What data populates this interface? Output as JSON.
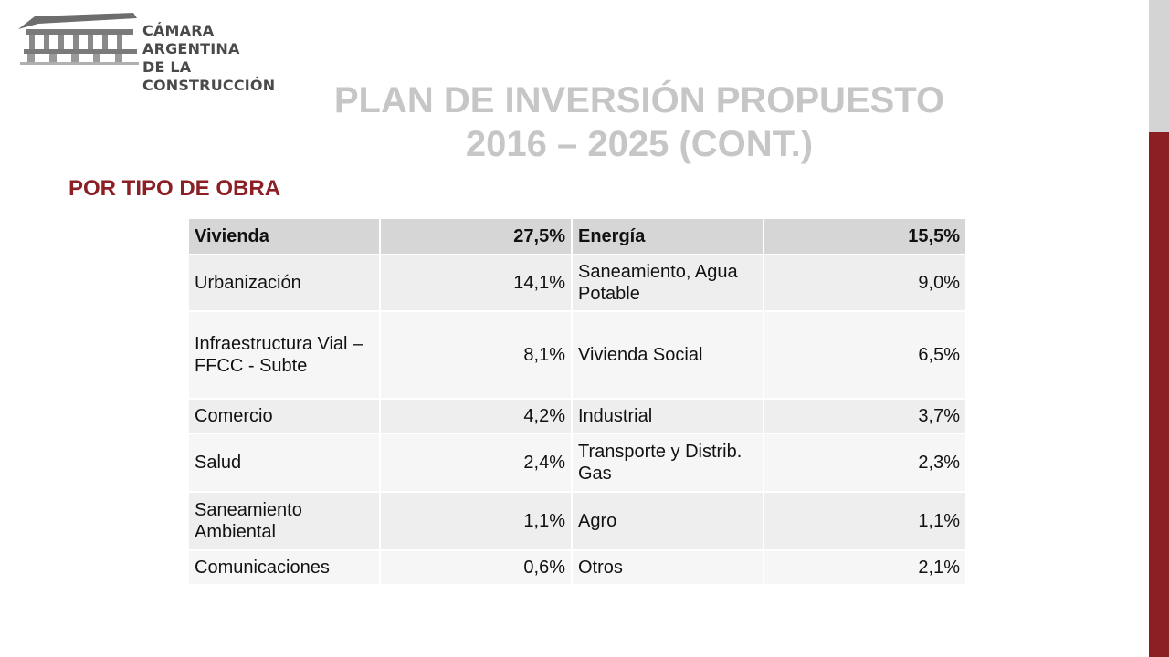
{
  "logo": {
    "line1": "CÁMARA ARGENTINA",
    "line2": "DE LA CONSTRUCCIÓN",
    "icon": "aqueduct-logo"
  },
  "title": {
    "line1": "PLAN DE INVERSIÓN PROPUESTO",
    "line2": "2016 – 2025 (CONT.)"
  },
  "subtitle": "POR TIPO DE OBRA",
  "colors": {
    "accent": "#8b1f24",
    "title_gray": "#c6c6c6",
    "side_gray": "#d4d4d4"
  },
  "table": {
    "header": [
      "Vivienda",
      "27,5%",
      "Energía",
      "15,5%"
    ],
    "rows": [
      [
        "Urbanización",
        "14,1%",
        "Saneamiento, Agua Potable",
        "9,0%"
      ],
      [
        "Infraestructura Vial – FFCC - Subte",
        "8,1%",
        "Vivienda Social",
        "6,5%"
      ],
      [
        "Comercio",
        "4,2%",
        "Industrial",
        "3,7%"
      ],
      [
        "Salud",
        "2,4%",
        "Transporte y Distrib. Gas",
        "2,3%"
      ],
      [
        "Saneamiento Ambiental",
        "1,1%",
        "Agro",
        "1,1%"
      ],
      [
        "Comunicaciones",
        "0,6%",
        "Otros",
        "2,1%"
      ]
    ]
  }
}
